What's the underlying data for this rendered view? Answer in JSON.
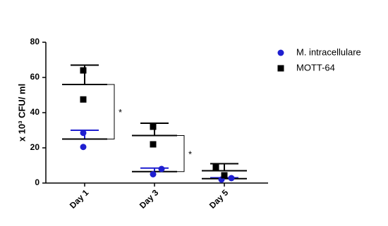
{
  "chart_data": {
    "type": "dot",
    "y_label": "x 10³ CFU/ ml",
    "categories": [
      "Day 1",
      "Day 3",
      "Day 5"
    ],
    "ylim": [
      0,
      80
    ],
    "yticks": [
      0,
      20,
      40,
      60,
      80
    ],
    "series": [
      {
        "name": "M. intracellulare",
        "color": "#1f1fd0",
        "marker": "circle",
        "values": [
          [
            28.5,
            20.5
          ],
          [
            5,
            8
          ],
          [
            2,
            2.8
          ]
        ],
        "mean": [
          25,
          6.5,
          2.5
        ],
        "error": [
          5,
          2,
          0.5
        ]
      },
      {
        "name": "MOTT-64",
        "color": "#000000",
        "marker": "square",
        "values": [
          [
            64,
            47.5
          ],
          [
            32,
            22
          ],
          [
            9.2,
            4.4
          ]
        ],
        "mean": [
          56,
          27,
          7
        ],
        "error": [
          11,
          7,
          4
        ]
      }
    ],
    "significance": [
      {
        "category": 0,
        "label": "*"
      },
      {
        "category": 1,
        "label": "*"
      }
    ]
  }
}
